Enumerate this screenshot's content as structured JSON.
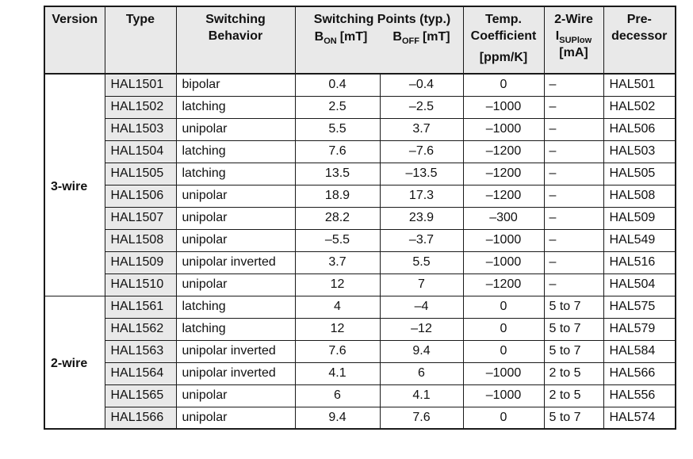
{
  "table": {
    "colors": {
      "header_bg": "#e9e9e9",
      "border": "#1a1a1a",
      "text": "#111111"
    },
    "header": {
      "version": "Version",
      "type": "Type",
      "behavior": "Switching\nBehavior",
      "switching_points_title": "Switching Points (typ.)",
      "b_on": {
        "base": "B",
        "sub": "ON",
        "unit": "[mT]"
      },
      "b_off": {
        "base": "B",
        "sub": "OFF",
        "unit": "[mT]"
      },
      "temp": {
        "line1": "Temp.",
        "line2": "Coefficient",
        "unit": "[ppm/K]"
      },
      "two_wire": {
        "line1": "2-Wire",
        "current": {
          "base": "I",
          "sub": "SUPlow"
        },
        "unit": "[mA]"
      },
      "predecessor": "Pre-\ndecessor"
    },
    "sections": [
      {
        "version": "3-wire",
        "rows": [
          {
            "type": "HAL1501",
            "behavior": "bipolar",
            "b_on": "0.4",
            "b_off": "–0.4",
            "temp": "0",
            "i_sup": "–",
            "predecessor": "HAL501"
          },
          {
            "type": "HAL1502",
            "behavior": "latching",
            "b_on": "2.5",
            "b_off": "–2.5",
            "temp": "–1000",
            "i_sup": "–",
            "predecessor": "HAL502"
          },
          {
            "type": "HAL1503",
            "behavior": "unipolar",
            "b_on": "5.5",
            "b_off": "3.7",
            "temp": "–1000",
            "i_sup": "–",
            "predecessor": "HAL506"
          },
          {
            "type": "HAL1504",
            "behavior": "latching",
            "b_on": "7.6",
            "b_off": "–7.6",
            "temp": "–1200",
            "i_sup": "–",
            "predecessor": "HAL503"
          },
          {
            "type": "HAL1505",
            "behavior": "latching",
            "b_on": "13.5",
            "b_off": "–13.5",
            "temp": "–1200",
            "i_sup": "–",
            "predecessor": "HAL505"
          },
          {
            "type": "HAL1506",
            "behavior": "unipolar",
            "b_on": "18.9",
            "b_off": "17.3",
            "temp": "–1200",
            "i_sup": "–",
            "predecessor": "HAL508"
          },
          {
            "type": "HAL1507",
            "behavior": "unipolar",
            "b_on": "28.2",
            "b_off": "23.9",
            "temp": "–300",
            "i_sup": "–",
            "predecessor": "HAL509"
          },
          {
            "type": "HAL1508",
            "behavior": "unipolar",
            "b_on": "–5.5",
            "b_off": "–3.7",
            "temp": "–1000",
            "i_sup": "–",
            "predecessor": "HAL549"
          },
          {
            "type": "HAL1509",
            "behavior": "unipolar inverted",
            "b_on": "3.7",
            "b_off": "5.5",
            "temp": "–1000",
            "i_sup": "–",
            "predecessor": "HAL516"
          },
          {
            "type": "HAL1510",
            "behavior": "unipolar",
            "b_on": "12",
            "b_off": "7",
            "temp": "–1200",
            "i_sup": "–",
            "predecessor": "HAL504"
          }
        ]
      },
      {
        "version": "2-wire",
        "rows": [
          {
            "type": "HAL1561",
            "behavior": "latching",
            "b_on": "4",
            "b_off": "–4",
            "temp": "0",
            "i_sup": "5 to 7",
            "predecessor": "HAL575"
          },
          {
            "type": "HAL1562",
            "behavior": "latching",
            "b_on": "12",
            "b_off": "–12",
            "temp": "0",
            "i_sup": "5 to 7",
            "predecessor": "HAL579"
          },
          {
            "type": "HAL1563",
            "behavior": "unipolar inverted",
            "b_on": "7.6",
            "b_off": "9.4",
            "temp": "0",
            "i_sup": "5 to 7",
            "predecessor": "HAL584"
          },
          {
            "type": "HAL1564",
            "behavior": "unipolar inverted",
            "b_on": "4.1",
            "b_off": "6",
            "temp": "–1000",
            "i_sup": "2 to 5",
            "predecessor": "HAL566"
          },
          {
            "type": "HAL1565",
            "behavior": "unipolar",
            "b_on": "6",
            "b_off": "4.1",
            "temp": "–1000",
            "i_sup": "2 to 5",
            "predecessor": "HAL556"
          },
          {
            "type": "HAL1566",
            "behavior": "unipolar",
            "b_on": "9.4",
            "b_off": "7.6",
            "temp": "0",
            "i_sup": "5 to 7",
            "predecessor": "HAL574"
          }
        ]
      }
    ]
  }
}
